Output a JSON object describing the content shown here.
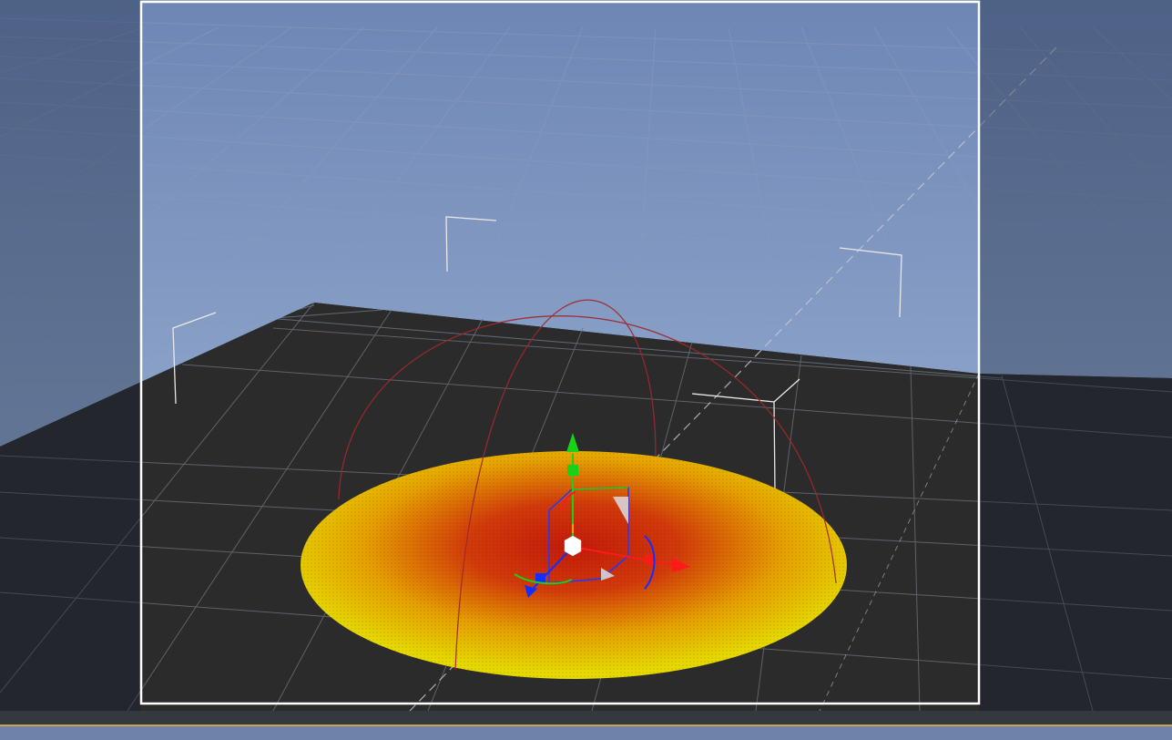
{
  "app": {
    "view": "3D viewport",
    "selected_object": "spotlight-cone",
    "gizmo_mode": "translate"
  },
  "colors": {
    "sky_top": "#7690bd",
    "sky_bottom": "#8aa0c6",
    "floor": "#2b2b2b",
    "grid_line": "#5b6270",
    "frame_border": "#ffffff",
    "cone_center": "#c41a0a",
    "cone_edge": "#e6d800",
    "light_range_arc": "#a0282c",
    "axis_x": "#ff1a1a",
    "axis_y": "#19d119",
    "axis_z": "#1030ff",
    "timeline_accent": "#c8a35a"
  },
  "icons": {
    "camera_bracket": "corner-bracket-icon",
    "gizmo_center": "cube-handle-icon",
    "rotate_ring": "rotation-ring-icon"
  }
}
